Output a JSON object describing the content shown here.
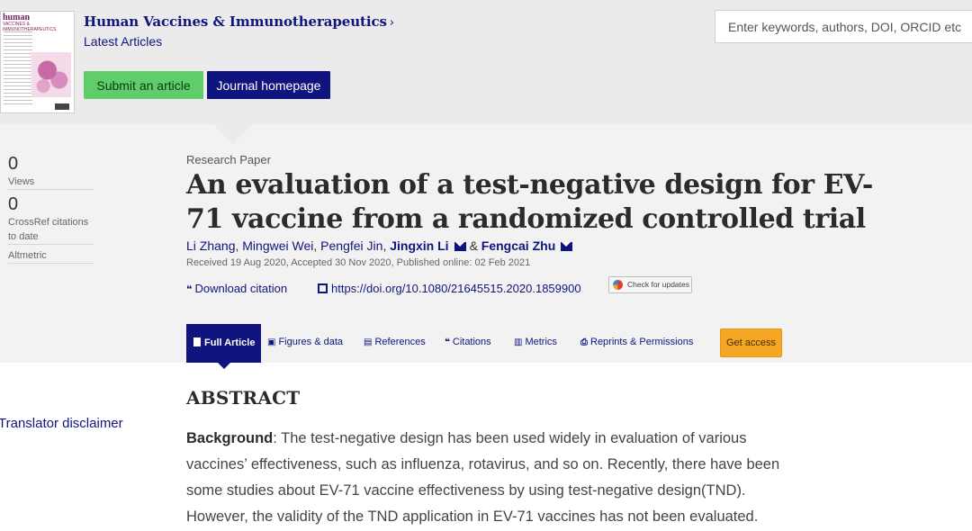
{
  "journal": {
    "cover_title_line1": "human",
    "cover_title_line2": "VACCINES & IMMUNOTHERAPEUTICS",
    "name": "Human Vaccines & Immunotherapeutics",
    "chevron": "›",
    "section": "Latest Articles",
    "submit_label": "Submit an article",
    "homepage_label": "Journal homepage"
  },
  "search": {
    "placeholder": "Enter keywords, authors, DOI, ORCID etc"
  },
  "metrics": [
    {
      "value": "0",
      "label": "Views"
    },
    {
      "value": "0",
      "label": "CrossRef citations to date"
    }
  ],
  "altmetric_label": "Altmetric",
  "article": {
    "type": "Research Paper",
    "title": "An evaluation of a test-negative design for EV-71 vaccine from a randomized controlled trial",
    "authors": [
      "Li Zhang",
      "Mingwei Wei",
      "Pengfei Jin",
      "Jingxin Li",
      "Fengcai Zhu"
    ],
    "author_separator": ",",
    "author_and": "&",
    "dates": "Received 19 Aug 2020, Accepted 30 Nov 2020, Published online: 02 Feb 2021",
    "download_citation": "Download citation",
    "doi": "https://doi.org/10.1080/21645515.2020.1859900",
    "check_updates": "Check for updates"
  },
  "tabs": {
    "full_article": "Full Article",
    "figures": "Figures & data",
    "references": "References",
    "citations": "Citations",
    "metrics": "Metrics",
    "reprints": "Reprints & Permissions",
    "get_access": "Get access"
  },
  "translator_disclaimer": "Translator disclaimer",
  "abstract": {
    "heading": "ABSTRACT",
    "lead": "Background",
    "text": ": The test-negative design has been used widely in evaluation of various vaccines’ effectiveness, such as influenza, rotavirus, and so on. Recently, there have been some studies about EV-71 vaccine effectiveness by using test-negative design(TND). However, the validity of the TND application in EV-71 vaccines has not been evaluated."
  },
  "icons": {
    "quote": "❝",
    "figures": "▣",
    "references": "▤",
    "citations": "❝",
    "metrics": "▥",
    "reprints": "⎙"
  },
  "colors": {
    "brand_navy": "#10147e",
    "submit_green": "#5fcd6a",
    "access_orange": "#f5a623"
  }
}
